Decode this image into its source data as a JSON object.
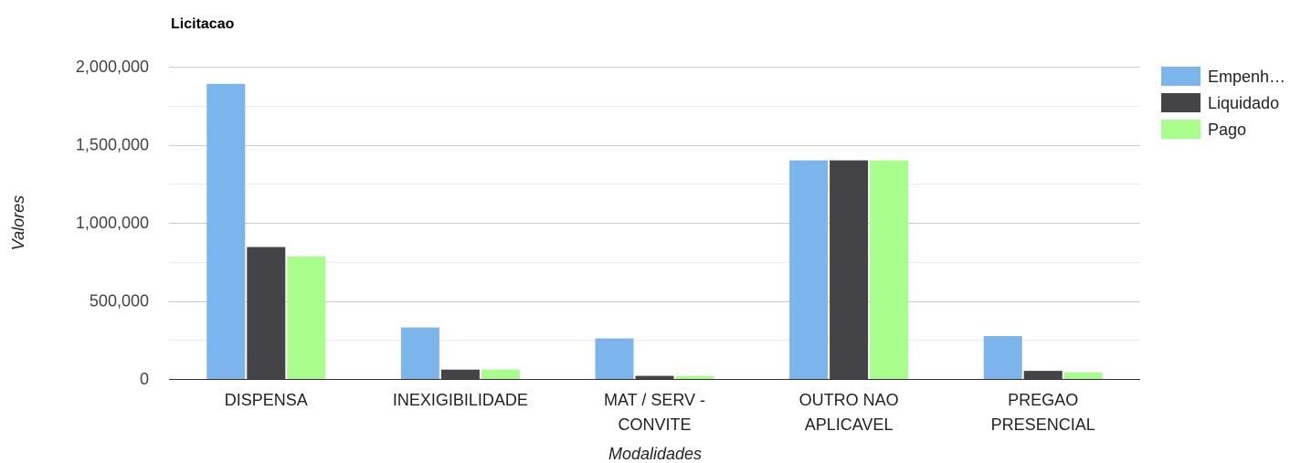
{
  "chart_data": {
    "type": "bar",
    "title": "Licitacao",
    "xlabel": "Modalidades",
    "ylabel": "Valores",
    "ylim": [
      0,
      2000000
    ],
    "yticks": [
      0,
      500000,
      1000000,
      1500000,
      2000000
    ],
    "ytick_labels": [
      "0",
      "500,000",
      "1,000,000",
      "1,500,000",
      "2,000,000"
    ],
    "grid": true,
    "legend_position": "right",
    "categories": [
      {
        "lines": [
          "DISPENSA"
        ]
      },
      {
        "lines": [
          "INEXIGIBILIDADE"
        ]
      },
      {
        "lines": [
          "MAT / SERV -",
          "CONVITE"
        ]
      },
      {
        "lines": [
          "OUTRO NAO",
          "APLICAVEL"
        ]
      },
      {
        "lines": [
          "PREGAO",
          "PRESENCIAL"
        ]
      }
    ],
    "series": [
      {
        "name": "Empenh…",
        "color": "#7cb5ec",
        "values": [
          1890000,
          330000,
          260000,
          1400000,
          275000
        ]
      },
      {
        "name": "Liquidado",
        "color": "#434348",
        "values": [
          845000,
          60000,
          20000,
          1400000,
          52000
        ]
      },
      {
        "name": "Pago",
        "color": "#a8fd8c",
        "values": [
          785000,
          60000,
          20000,
          1400000,
          42000
        ]
      }
    ]
  }
}
